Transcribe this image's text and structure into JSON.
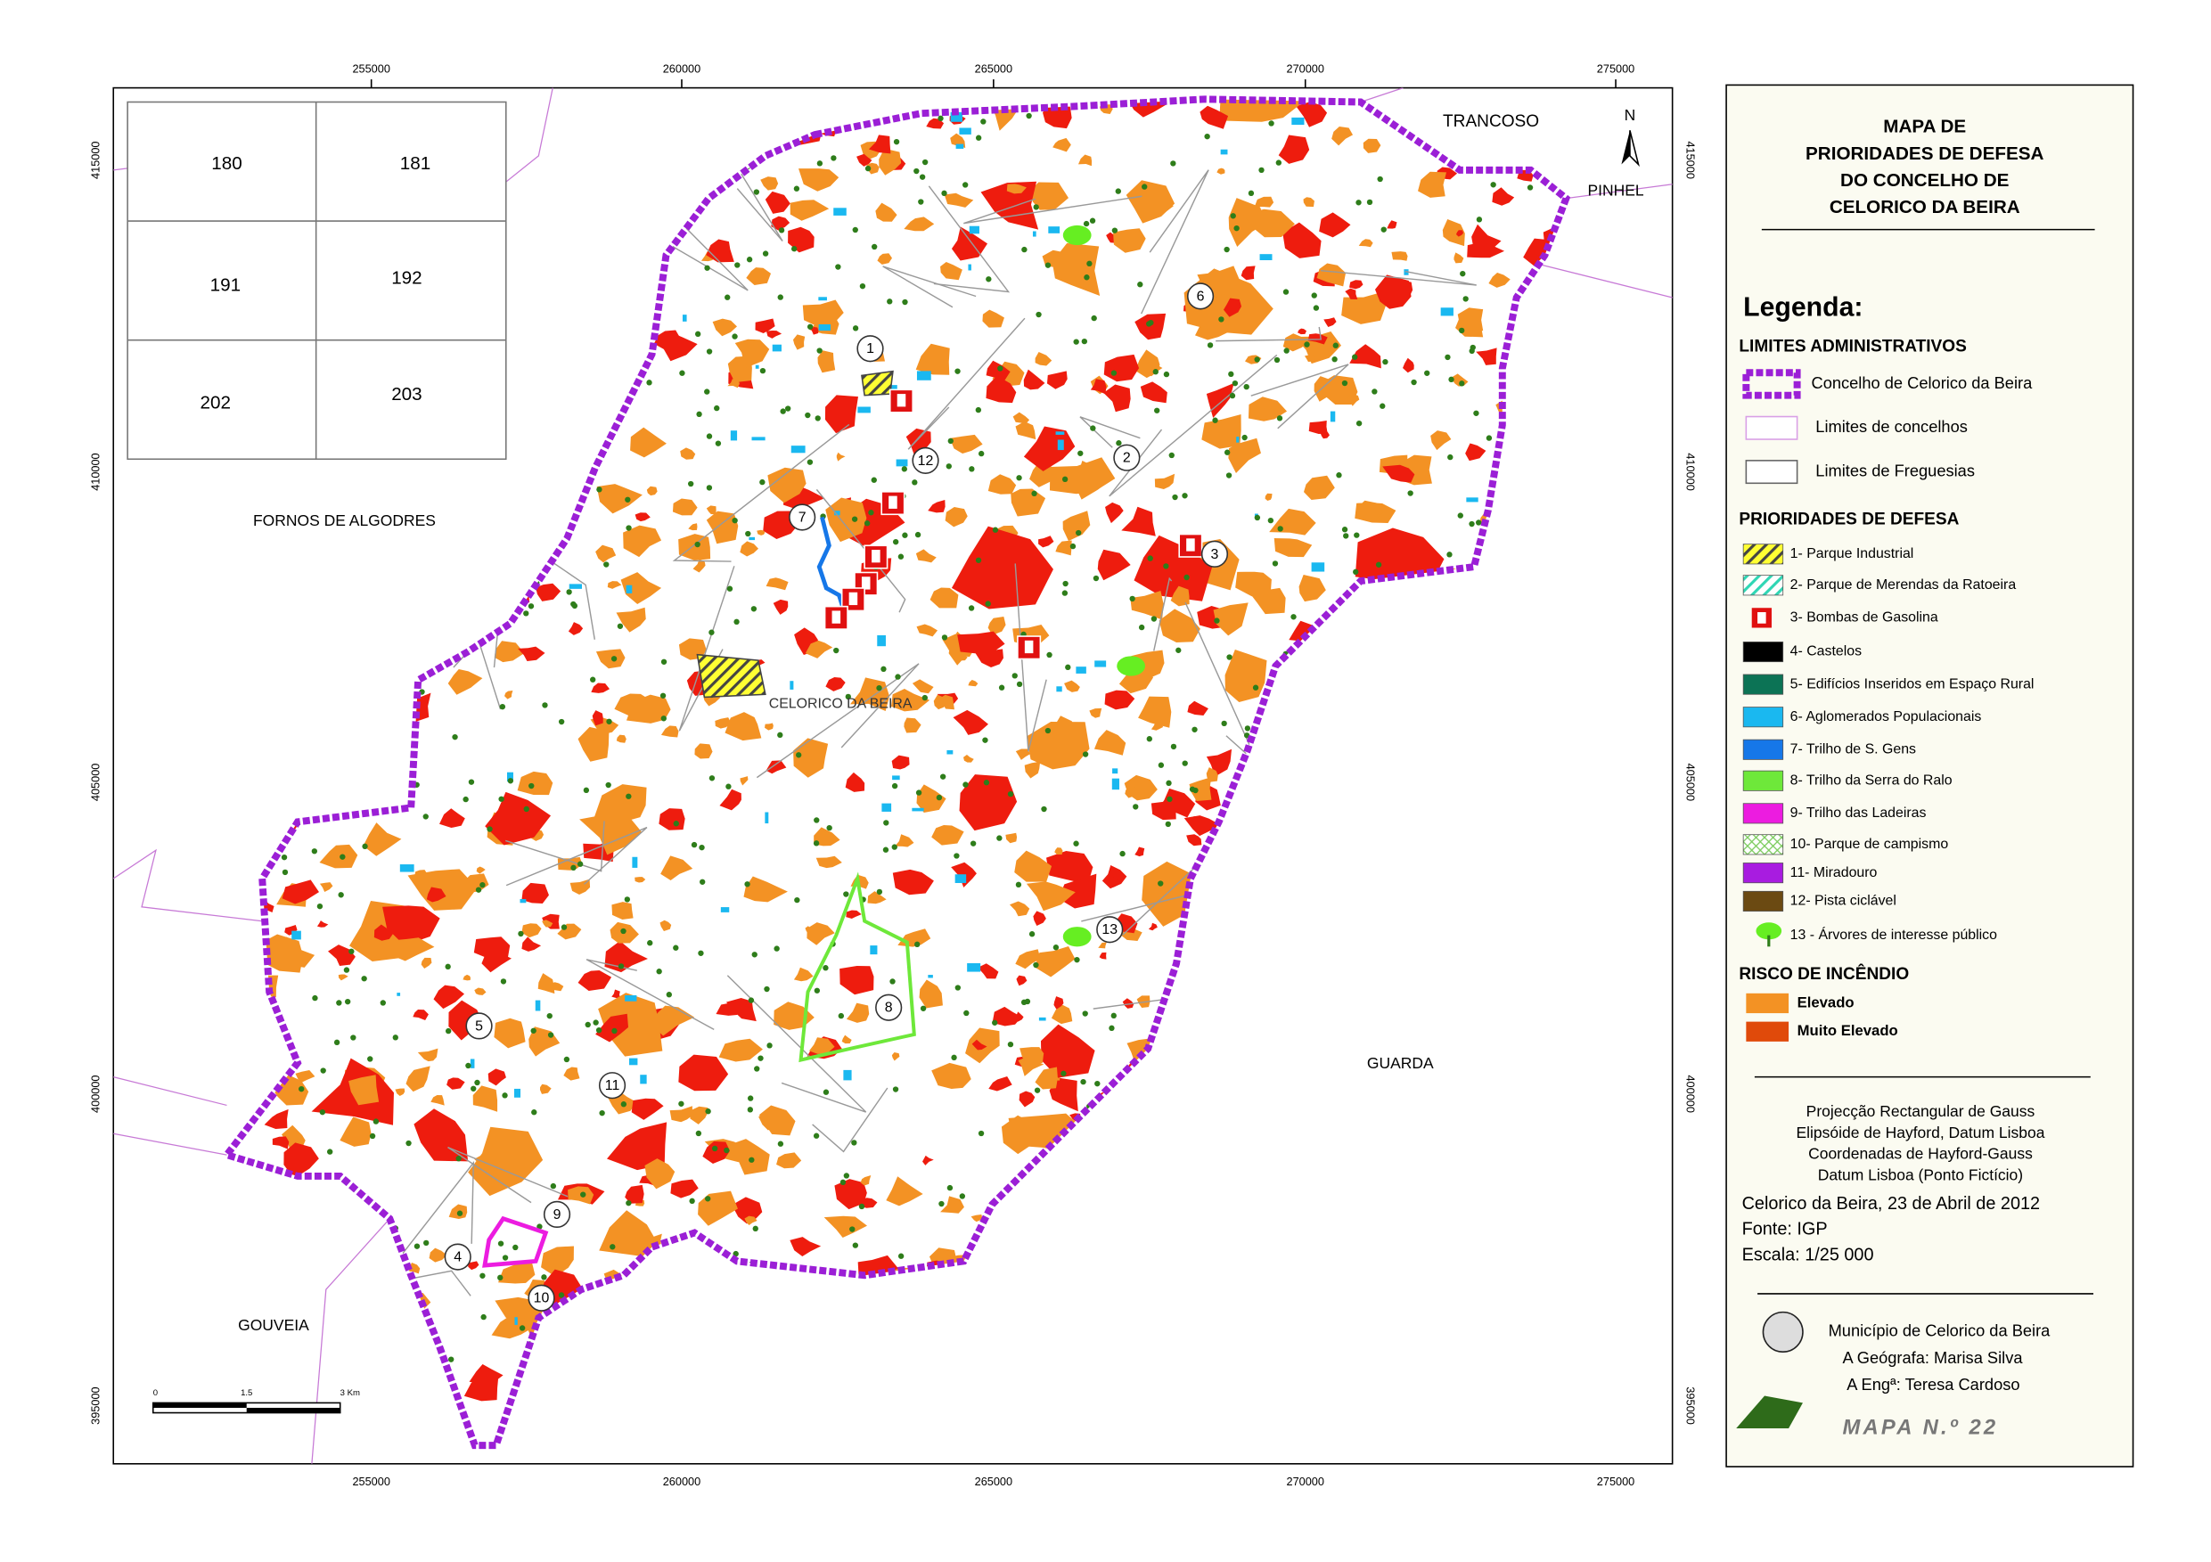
{
  "map": {
    "x_coordinates": [
      "255000",
      "260000",
      "265000",
      "270000",
      "275000"
    ],
    "y_coordinates": [
      "415000",
      "410000",
      "405000",
      "400000",
      "395000"
    ],
    "inset_sheets": [
      "180",
      "181",
      "191",
      "192",
      "202",
      "203"
    ],
    "place_names": [
      "TRANCOSO",
      "PINHEL",
      "FORNOS DE ALGODRES",
      "GUARDA",
      "GOUVEIA",
      "CELORICO DA BEIRA"
    ],
    "markers": [
      "1",
      "2",
      "3",
      "4",
      "5",
      "6",
      "7",
      "8",
      "9",
      "10",
      "11",
      "12",
      "13"
    ],
    "north": "N",
    "scale_bar": [
      "0",
      "1.5",
      "3 Km"
    ]
  },
  "panel": {
    "title": [
      "MAPA DE",
      "PRIORIDADES DE DEFESA",
      "DO CONCELHO DE",
      "CELORICO DA BEIRA"
    ],
    "legend_heading": "Legenda:",
    "sections": [
      {
        "heading": "LIMITES ADMINISTRATIVOS",
        "items": [
          "Concelho de Celorico da Beira",
          "Limites de concelhos",
          "Limites de Freguesias"
        ]
      },
      {
        "heading": "PRIORIDADES DE DEFESA",
        "items": [
          "1- Parque Industrial",
          "2- Parque de Merendas da Ratoeira",
          "3- Bombas de Gasolina",
          "4- Castelos",
          "5- Edifícios Inseridos em Espaço Rural",
          "6- Aglomerados Populacionais",
          "7- Trilho de S. Gens",
          "8- Trilho da Serra do Ralo",
          "9- Trilho das Ladeiras",
          "10- Parque de campismo",
          "11- Miradouro",
          "12- Pista ciclável",
          "13 - Árvores de interesse público"
        ]
      },
      {
        "heading": "RISCO DE INCÊNDIO",
        "items": [
          "Elevado",
          "Muito Elevado"
        ]
      }
    ],
    "projection": [
      "Projecção Rectangular de Gauss",
      "Elipsóide de Hayford, Datum Lisboa",
      "Coordenadas de Hayford-Gauss",
      "Datum Lisboa (Ponto Fictício)"
    ],
    "date": "Celorico da Beira, 23 de Abril de 2012",
    "source": "Fonte: IGP",
    "scale": "Escala: 1/25 000",
    "credits": [
      "Município de Celorico da Beira",
      "A Geógrafa: Marisa Silva",
      "A Engª: Teresa Cardoso"
    ],
    "map_number": "MAPA N.º 22"
  }
}
